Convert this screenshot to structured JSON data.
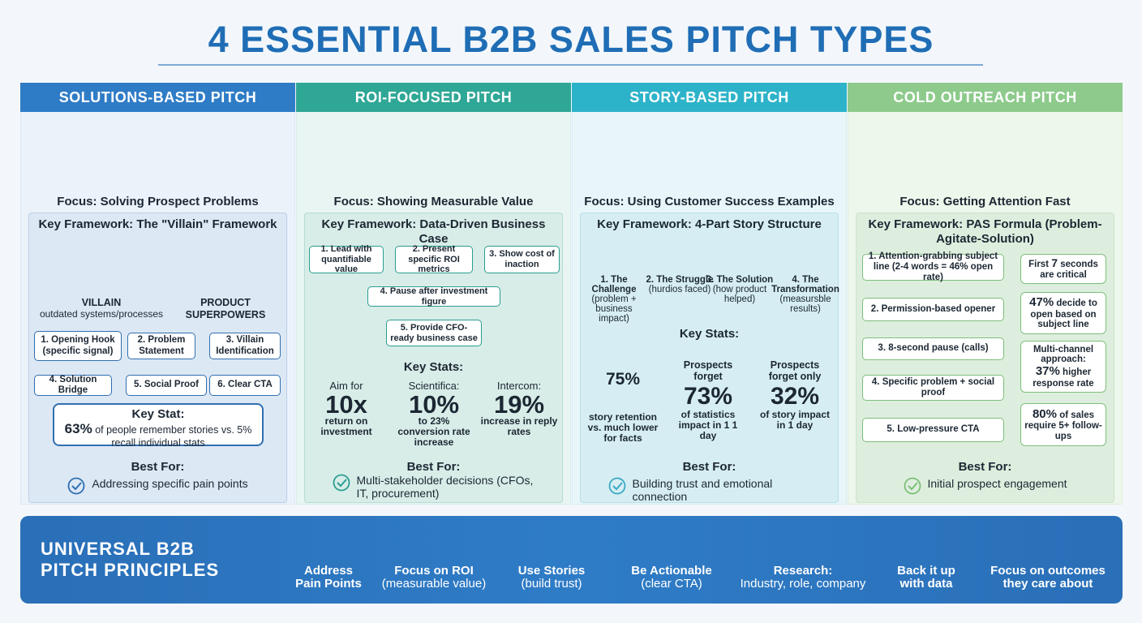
{
  "title": "4 ESSENTIAL B2B SALES PITCH TYPES",
  "columns": [
    {
      "header": "SOLUTIONS-BASED PITCH",
      "focus": "Focus: Solving Prospect Problems",
      "framework": "Key Framework: The \"Villain\" Framework",
      "villain": {
        "label": "VILLAIN",
        "sub": "outdated systems/processes"
      },
      "hero": "PRODUCT SUPERPOWERS",
      "steps": [
        "1. Opening Hook (specific signal)",
        "2. Problem Statement",
        "3. Villain Identification",
        "4. Solution Bridge",
        "5. Social Proof",
        "6. Clear CTA"
      ],
      "stat_title": "Key Stat:",
      "stat_value": "63%",
      "stat_text": "of people remember stories vs. 5% recall individual stats",
      "best_title": "Best For:",
      "best": "Addressing specific pain points"
    },
    {
      "header": "ROI-FOCUSED PITCH",
      "focus": "Focus: Showing Measurable Value",
      "framework": "Key Framework: Data-Driven Business Case",
      "steps": [
        "1. Lead with quantifiable value",
        "2. Present specific ROI metrics",
        "3. Show cost of inaction",
        "4. Pause after investment figure",
        "5. Provide CFO-ready business case"
      ],
      "stats_title": "Key Stats:",
      "stats": [
        {
          "pre": "Aim for",
          "value": "10x",
          "post": "return on investment"
        },
        {
          "pre": "Scientifica:",
          "value": "10%",
          "post": "to 23% conversion rate increase"
        },
        {
          "pre": "Intercom:",
          "value": "19%",
          "post": "increase in reply rates"
        }
      ],
      "best_title": "Best For:",
      "best": "Multi-stakeholder decisions (CFOs, IT, procurement)"
    },
    {
      "header": "STORY-BASED PITCH",
      "focus": "Focus: Using Customer Success Examples",
      "framework": "Key Framework: 4-Part Story Structure",
      "story": [
        {
          "title": "1. The Challenge",
          "sub": "(problem + business impact)"
        },
        {
          "title": "2. The Struggle",
          "sub": "(hurdios faced)"
        },
        {
          "title": "3. The Solution",
          "sub": "(how product helped)"
        },
        {
          "title": "4. The Transformation",
          "sub": "(measursble results)"
        }
      ],
      "stats_title": "Key Stats:",
      "stats": [
        {
          "value": "75%",
          "post": "story retention vs. much lower for facts"
        },
        {
          "pre": "Prospects forget",
          "value": "73%",
          "post": "of statistics impact in 1 1 day"
        },
        {
          "pre": "Prospects forget only",
          "value": "32%",
          "post": "of story impact in 1 day"
        }
      ],
      "best_title": "Best For:",
      "best": "Building trust and emotional connection"
    },
    {
      "header": "COLD OUTREACH PITCH",
      "focus": "Focus: Getting Attention Fast",
      "framework": "Key Framework: PAS Formula (Problem-Agitate-Solution)",
      "steps": [
        "1. Attention-grabbing subject line (2-4 words = 46% open rate)",
        "2. Permission-based opener",
        "3. 8-second pause (calls)",
        "4. Specific problem + social proof",
        "5. Low-pressure CTA"
      ],
      "callouts": [
        {
          "pre": "First",
          "value": "7",
          "post": "seconds are critical"
        },
        {
          "value": "47%",
          "post": "decide to open based on subject line"
        },
        {
          "pre": "Multi-channel approach:",
          "value": "37%",
          "post": "higher response rate"
        },
        {
          "value": "80%",
          "post": "of sales require 5+ follow-ups"
        }
      ],
      "best_title": "Best For:",
      "best": "Initial prospect engagement"
    }
  ],
  "footer": {
    "title": "UNIVERSAL B2B PITCH PRINCIPLES",
    "items": [
      {
        "line1": "Address",
        "line2": "Pain Points"
      },
      {
        "line1": "Focus on ROI",
        "line2": "(measurable value)"
      },
      {
        "line1": "Use Stories",
        "line2": "(build trust)"
      },
      {
        "line1": "Be Actionable",
        "line2": "(clear CTA)"
      },
      {
        "line1": "Research:",
        "line2": "Industry, role, company"
      },
      {
        "line1": "Back it up",
        "line2": "with data"
      },
      {
        "line1": "Focus on outcomes",
        "line2": "they care about"
      }
    ]
  }
}
